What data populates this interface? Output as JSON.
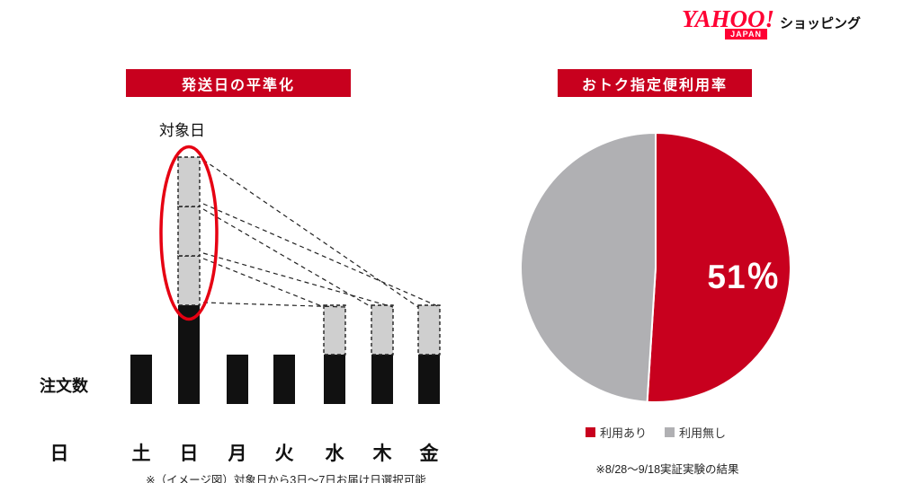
{
  "logo": {
    "yahoo": "YAHOO!",
    "japan": "JAPAN",
    "shopping": "ショッピング"
  },
  "colors": {
    "accent_red": "#c8001e",
    "bar": "#111111",
    "dashed_fill": "#cfcfcf",
    "dashed_stroke": "#222222",
    "ellipse": "#e60012",
    "pie_red": "#c8001e",
    "pie_gray": "#b0b0b3",
    "logo_red": "#ff0033"
  },
  "left_chart": {
    "title": "発送日の平準化",
    "annotation": "対象日",
    "ylabel": "注文数",
    "caption": "※（イメージ図）対象日から3日～7日お届け日選択可能"
  },
  "right_chart": {
    "title": "おトク指定便利用率",
    "value_label": "51％",
    "legend": [
      {
        "label": "利用あり",
        "color": "#c8001e"
      },
      {
        "label": "利用無し",
        "color": "#b0b0b3"
      }
    ],
    "caption": "※8/28～9/18実証実験の結果"
  },
  "chart_data": [
    {
      "type": "bar",
      "title": "発送日の平準化",
      "ylabel": "注文数",
      "categories": [
        "日",
        "土",
        "日",
        "月",
        "火",
        "水",
        "木",
        "金"
      ],
      "bars": [
        {
          "label": "日",
          "solid_units": 0,
          "dashed_units": 0
        },
        {
          "label": "土",
          "solid_units": 1,
          "dashed_units": 0
        },
        {
          "label": "日",
          "solid_units": 2,
          "dashed_units": 3,
          "highlight": true,
          "annotation": "対象日"
        },
        {
          "label": "月",
          "solid_units": 1,
          "dashed_units": 0
        },
        {
          "label": "火",
          "solid_units": 1,
          "dashed_units": 0
        },
        {
          "label": "水",
          "solid_units": 1,
          "dashed_units": 1
        },
        {
          "label": "木",
          "solid_units": 1,
          "dashed_units": 1
        },
        {
          "label": "金",
          "solid_units": 1,
          "dashed_units": 1
        }
      ],
      "note": "※（イメージ図）対象日から3日～7日お届け日選択可能"
    },
    {
      "type": "pie",
      "title": "おトク指定便利用率",
      "labels": [
        "利用あり",
        "利用無し"
      ],
      "values": [
        51,
        49
      ],
      "colors": [
        "#c8001e",
        "#b0b0b3"
      ],
      "value_label": "51％",
      "legend_position": "bottom",
      "note": "※8/28～9/18実証実験の結果"
    }
  ]
}
